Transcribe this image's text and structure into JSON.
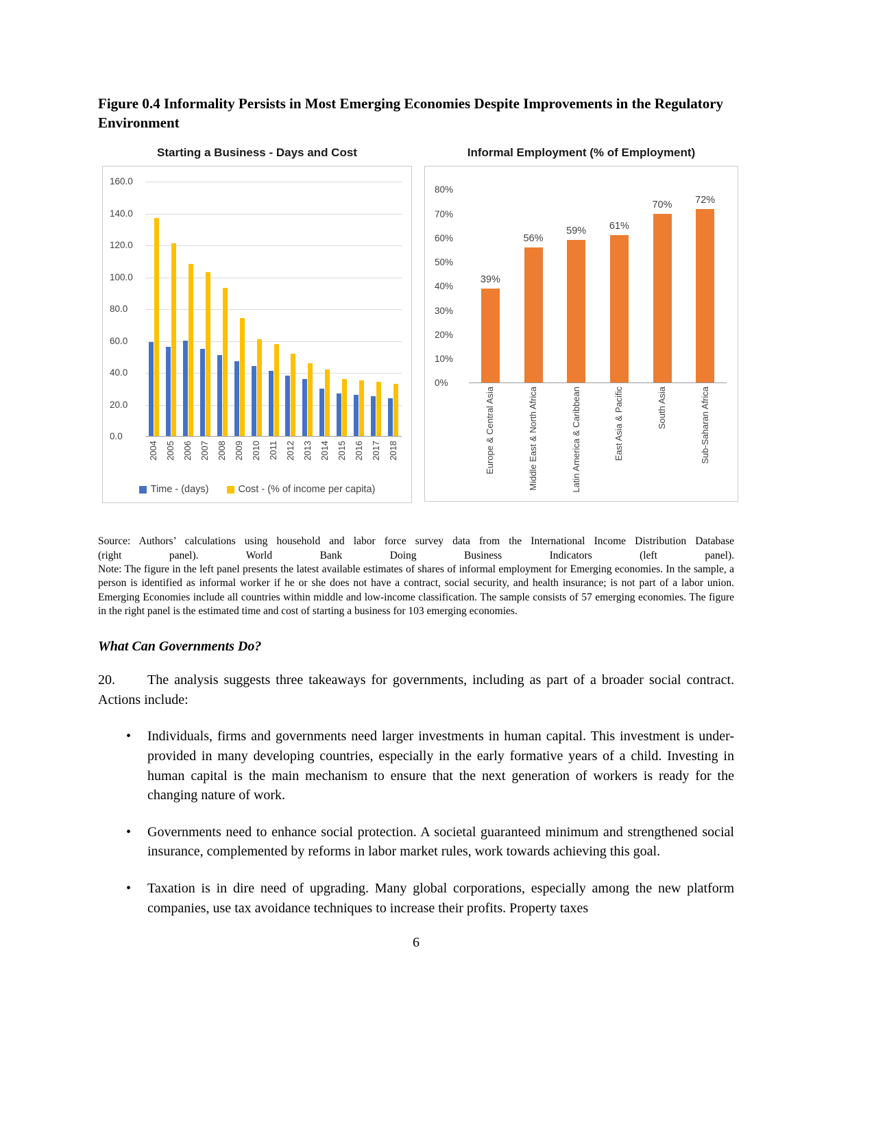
{
  "page": {
    "figure_title": "Figure 0.4 Informality Persists in Most Emerging Economies Despite Improvements in the Regulatory Environment",
    "page_number": "6"
  },
  "chart_data": [
    {
      "type": "bar",
      "title": "Starting a Business - Days and Cost",
      "categories": [
        "2004",
        "2005",
        "2006",
        "2007",
        "2008",
        "2009",
        "2010",
        "2011",
        "2012",
        "2013",
        "2014",
        "2015",
        "2016",
        "2017",
        "2018"
      ],
      "series": [
        {
          "name": "Time - (days)",
          "color": "#4472C4",
          "values": [
            59,
            56,
            60,
            55,
            51,
            47,
            44,
            41,
            38,
            36,
            30,
            27,
            26,
            25,
            24
          ]
        },
        {
          "name": "Cost - (% of income per capita)",
          "color": "#FFC000",
          "values": [
            137,
            121,
            108,
            103,
            93,
            74,
            61,
            58,
            52,
            46,
            42,
            36,
            35,
            34,
            33
          ]
        }
      ],
      "ylim": [
        0,
        160
      ],
      "ytick_step": 20,
      "ytick_labels": [
        "0.0",
        "20.0",
        "40.0",
        "60.0",
        "80.0",
        "100.0",
        "120.0",
        "140.0",
        "160.0"
      ],
      "grid": true,
      "legend_position": "bottom"
    },
    {
      "type": "bar",
      "title": "Informal Employment (% of Employment)",
      "categories": [
        "Europe & Central Asia",
        "Middle East & North Africa",
        "Latin America & Caribbean",
        "East Asia & Pacific",
        "South Asia",
        "Sub-Saharan Africa"
      ],
      "values": [
        39,
        56,
        59,
        61,
        70,
        72
      ],
      "data_labels": [
        "39%",
        "56%",
        "59%",
        "61%",
        "70%",
        "72%"
      ],
      "bar_color": "#ED7D31",
      "ylim": [
        0,
        80
      ],
      "ytick_step": 10,
      "ytick_labels": [
        "0%",
        "10%",
        "20%",
        "30%",
        "40%",
        "50%",
        "60%",
        "70%",
        "80%"
      ],
      "grid": false,
      "legend_position": "none"
    }
  ],
  "source_note": {
    "line1": "Source: Authors’ calculations using household and labor force survey data from the International Income Distribution Database",
    "line2": "(right panel). World Bank Doing Business Indicators (left panel).",
    "note": "Note: The figure in the left panel presents the latest available estimates of shares of informal employment for Emerging economies. In the sample, a person is identified as informal worker if he or she does not have a contract, social security, and health insurance; is not part of a labor union. Emerging Economies include all countries within middle and low-income classification. The sample consists of 57 emerging economies. The figure in the right panel is the estimated time and cost of starting a business for 103 emerging economies."
  },
  "section": {
    "heading": "What Can Governments Do?",
    "paragraph_number": "20.",
    "paragraph_text": "The analysis suggests three takeaways for governments, including as part of a broader social contract. Actions include:",
    "bullets": [
      "Individuals, firms and governments need larger investments in human capital. This investment is under-provided in many developing countries, especially in the early formative years of a child. Investing in human capital is the main mechanism to ensure that the next generation of workers is ready for the changing nature of work.",
      "Governments need to enhance social protection. A societal guaranteed minimum and strengthened social insurance, complemented by reforms in labor market rules, work towards achieving this goal.",
      "Taxation is in dire need of upgrading. Many global corporations, especially among the new platform companies, use tax avoidance techniques to increase their profits. Property taxes"
    ]
  }
}
